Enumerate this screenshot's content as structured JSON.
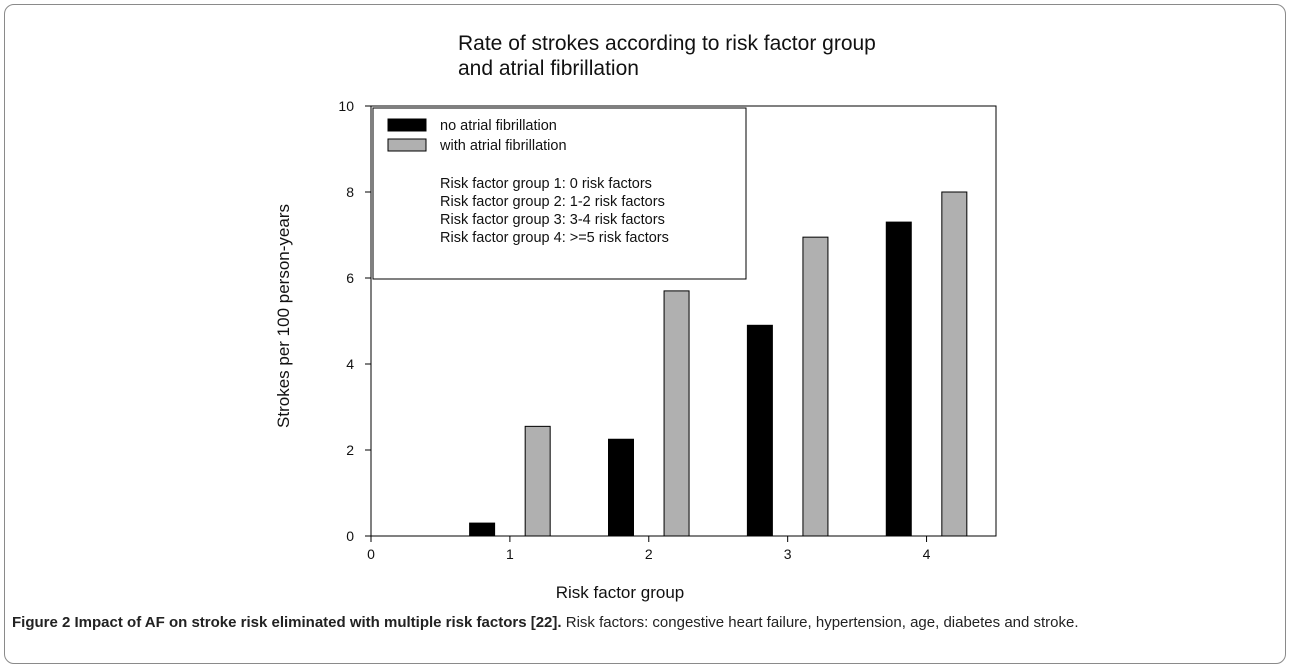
{
  "chart_data": {
    "type": "bar",
    "title_lines": [
      "Rate of strokes according to risk factor group",
      "and atrial fibrillation"
    ],
    "xlabel": "Risk factor group",
    "ylabel": "Strokes per 100 person-years",
    "xlim": [
      0,
      4.5
    ],
    "ylim": [
      0,
      10
    ],
    "xticks": [
      0,
      1,
      2,
      3,
      4
    ],
    "yticks": [
      0,
      2,
      4,
      6,
      8,
      10
    ],
    "categories": [
      1,
      2,
      3,
      4
    ],
    "series": [
      {
        "name": "no atrial fibrillation",
        "color": "#000000",
        "values": [
          0.3,
          2.25,
          4.9,
          7.3
        ]
      },
      {
        "name": "with atrial fibrillation",
        "color": "#b0b0b0",
        "values": [
          2.55,
          5.7,
          6.95,
          8.0
        ]
      }
    ],
    "legend_placement": "top-left",
    "legend_notes": [
      "Risk factor group 1: 0 risk factors",
      "Risk factor group 2: 1-2 risk factors",
      "Risk factor group 3: 3-4 risk factors",
      "Risk factor group 4: >=5 risk factors"
    ],
    "grid": false
  },
  "caption": {
    "lead": "Figure 2 Impact of AF on stroke risk eliminated with multiple risk factors [22].",
    "text": " Risk factors: congestive heart failure, hypertension, age, diabetes and stroke."
  }
}
